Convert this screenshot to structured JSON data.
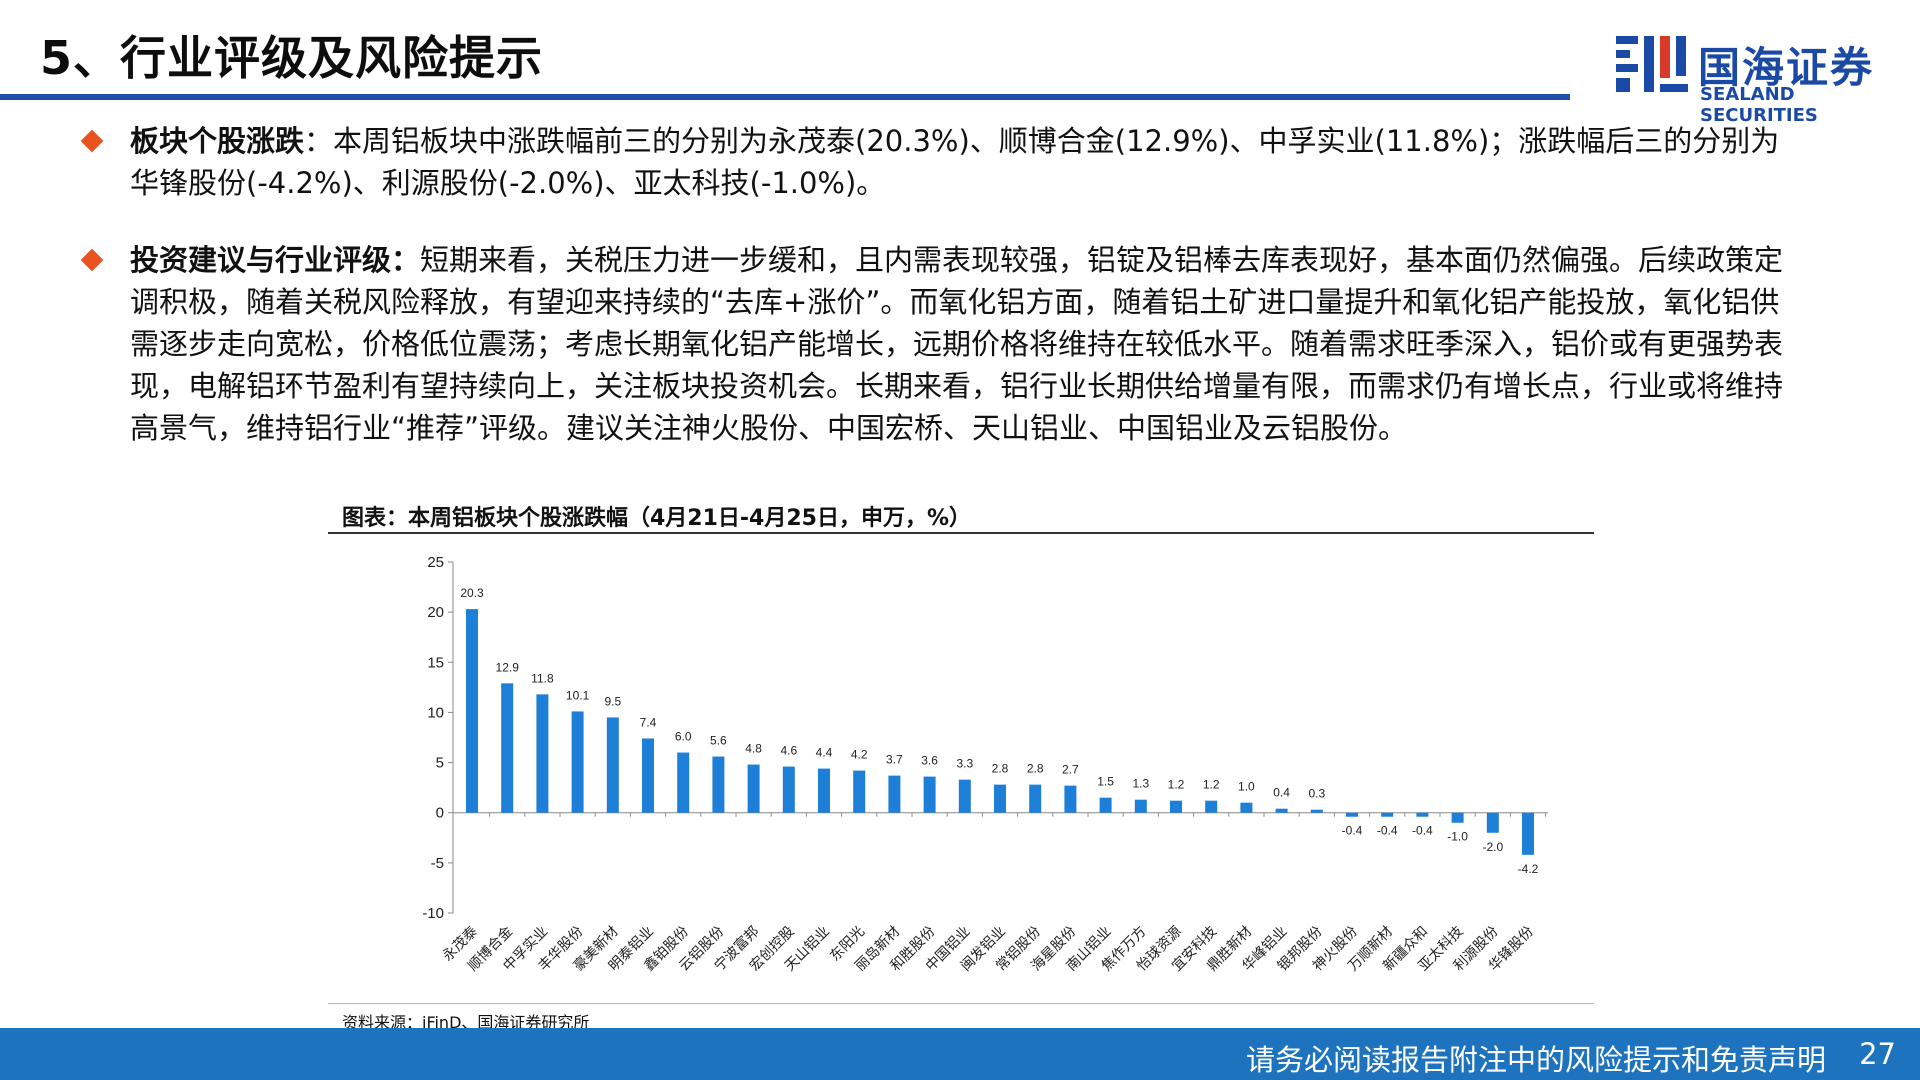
{
  "header": {
    "title": "5、行业评级及风险提示",
    "logo_cn": "国海证券",
    "logo_en": "SEALAND SECURITIES"
  },
  "bullets": [
    {
      "label": "板块个股涨跌",
      "text": "：本周铝板块中涨跌幅前三的分别为永茂泰(20.3%)、顺博合金(12.9%)、中孚实业(11.8%)；涨跌幅后三的分别为华锋股份(-4.2%)、利源股份(-2.0%)、亚太科技(-1.0%)。"
    },
    {
      "label": "投资建议与行业评级：",
      "text": "短期来看，关税压力进一步缓和，且内需表现较强，铝锭及铝棒去库表现好，基本面仍然偏强。后续政策定调积极，随着关税风险释放，有望迎来持续的“去库+涨价”。而氧化铝方面，随着铝土矿进口量提升和氧化铝产能投放，氧化铝供需逐步走向宽松，价格低位震荡；考虑长期氧化铝产能增长，远期价格将维持在较低水平。随着需求旺季深入，铝价或有更强势表现，电解铝环节盈利有望持续向上，关注板块投资机会。长期来看，铝行业长期供给增量有限，而需求仍有增长点，行业或将维持高景气，维持铝行业“推荐”评级。建议关注神火股份、中国宏桥、天山铝业、中国铝业及云铝股份。"
    }
  ],
  "chart_title": "图表：本周铝板块个股涨跌幅（4月21日-4月25日，申万，%）",
  "source": "资料来源：iFinD、国海证券研究所",
  "footer": {
    "disclaimer": "请务必阅读报告附注中的风险提示和免责声明",
    "page": "27"
  },
  "colors": {
    "bar": "#1e7fd8",
    "accent": "#e8531f",
    "brand": "#1a4aa6",
    "footer": "#1e73be"
  },
  "chart_data": {
    "type": "bar",
    "categories": [
      "永茂泰",
      "顺博合金",
      "中孚实业",
      "丰华股份",
      "豪美新材",
      "明泰铝业",
      "鑫铂股份",
      "云铝股份",
      "宁波富邦",
      "宏创控股",
      "天山铝业",
      "东阳光",
      "丽岛新材",
      "和胜股份",
      "中国铝业",
      "闽发铝业",
      "常铝股份",
      "海星股份",
      "南山铝业",
      "焦作万方",
      "怡球资源",
      "宜安科技",
      "鼎胜新材",
      "华峰铝业",
      "银邦股份",
      "神火股份",
      "万顺新材",
      "新疆众和",
      "亚太科技",
      "利源股份",
      "华锋股份"
    ],
    "values": [
      20.3,
      12.9,
      11.8,
      10.1,
      9.5,
      7.4,
      6.0,
      5.6,
      4.8,
      4.6,
      4.4,
      4.2,
      3.7,
      3.6,
      3.3,
      2.8,
      2.8,
      2.7,
      1.5,
      1.3,
      1.2,
      1.2,
      1.0,
      0.4,
      0.3,
      -0.4,
      -0.4,
      -0.4,
      -1.0,
      -2.0,
      -4.2
    ],
    "value_labels": [
      "20.3",
      "12.9",
      "11.8",
      "10.1",
      "9.5",
      "7.4",
      "6.0",
      "5.6",
      "4.8",
      "4.6",
      "4.4",
      "4.2",
      "3.7",
      "3.6",
      "3.3",
      "2.8",
      "2.8",
      "2.7",
      "1.5",
      "1.3",
      "1.2",
      "1.2",
      "1.0",
      "0.4",
      "0.3",
      "-0.4",
      "-0.4",
      "-0.4",
      "-1.0",
      "-2.0",
      "-4.2"
    ],
    "yticks": [
      "25",
      "20",
      "15",
      "10",
      "5",
      "0",
      "-5",
      "-10"
    ],
    "ylim": [
      -10,
      25
    ],
    "title": "图表：本周铝板块个股涨跌幅（4月21日-4月25日，申万，%）",
    "xlabel": "",
    "ylabel": "",
    "grid": false
  }
}
